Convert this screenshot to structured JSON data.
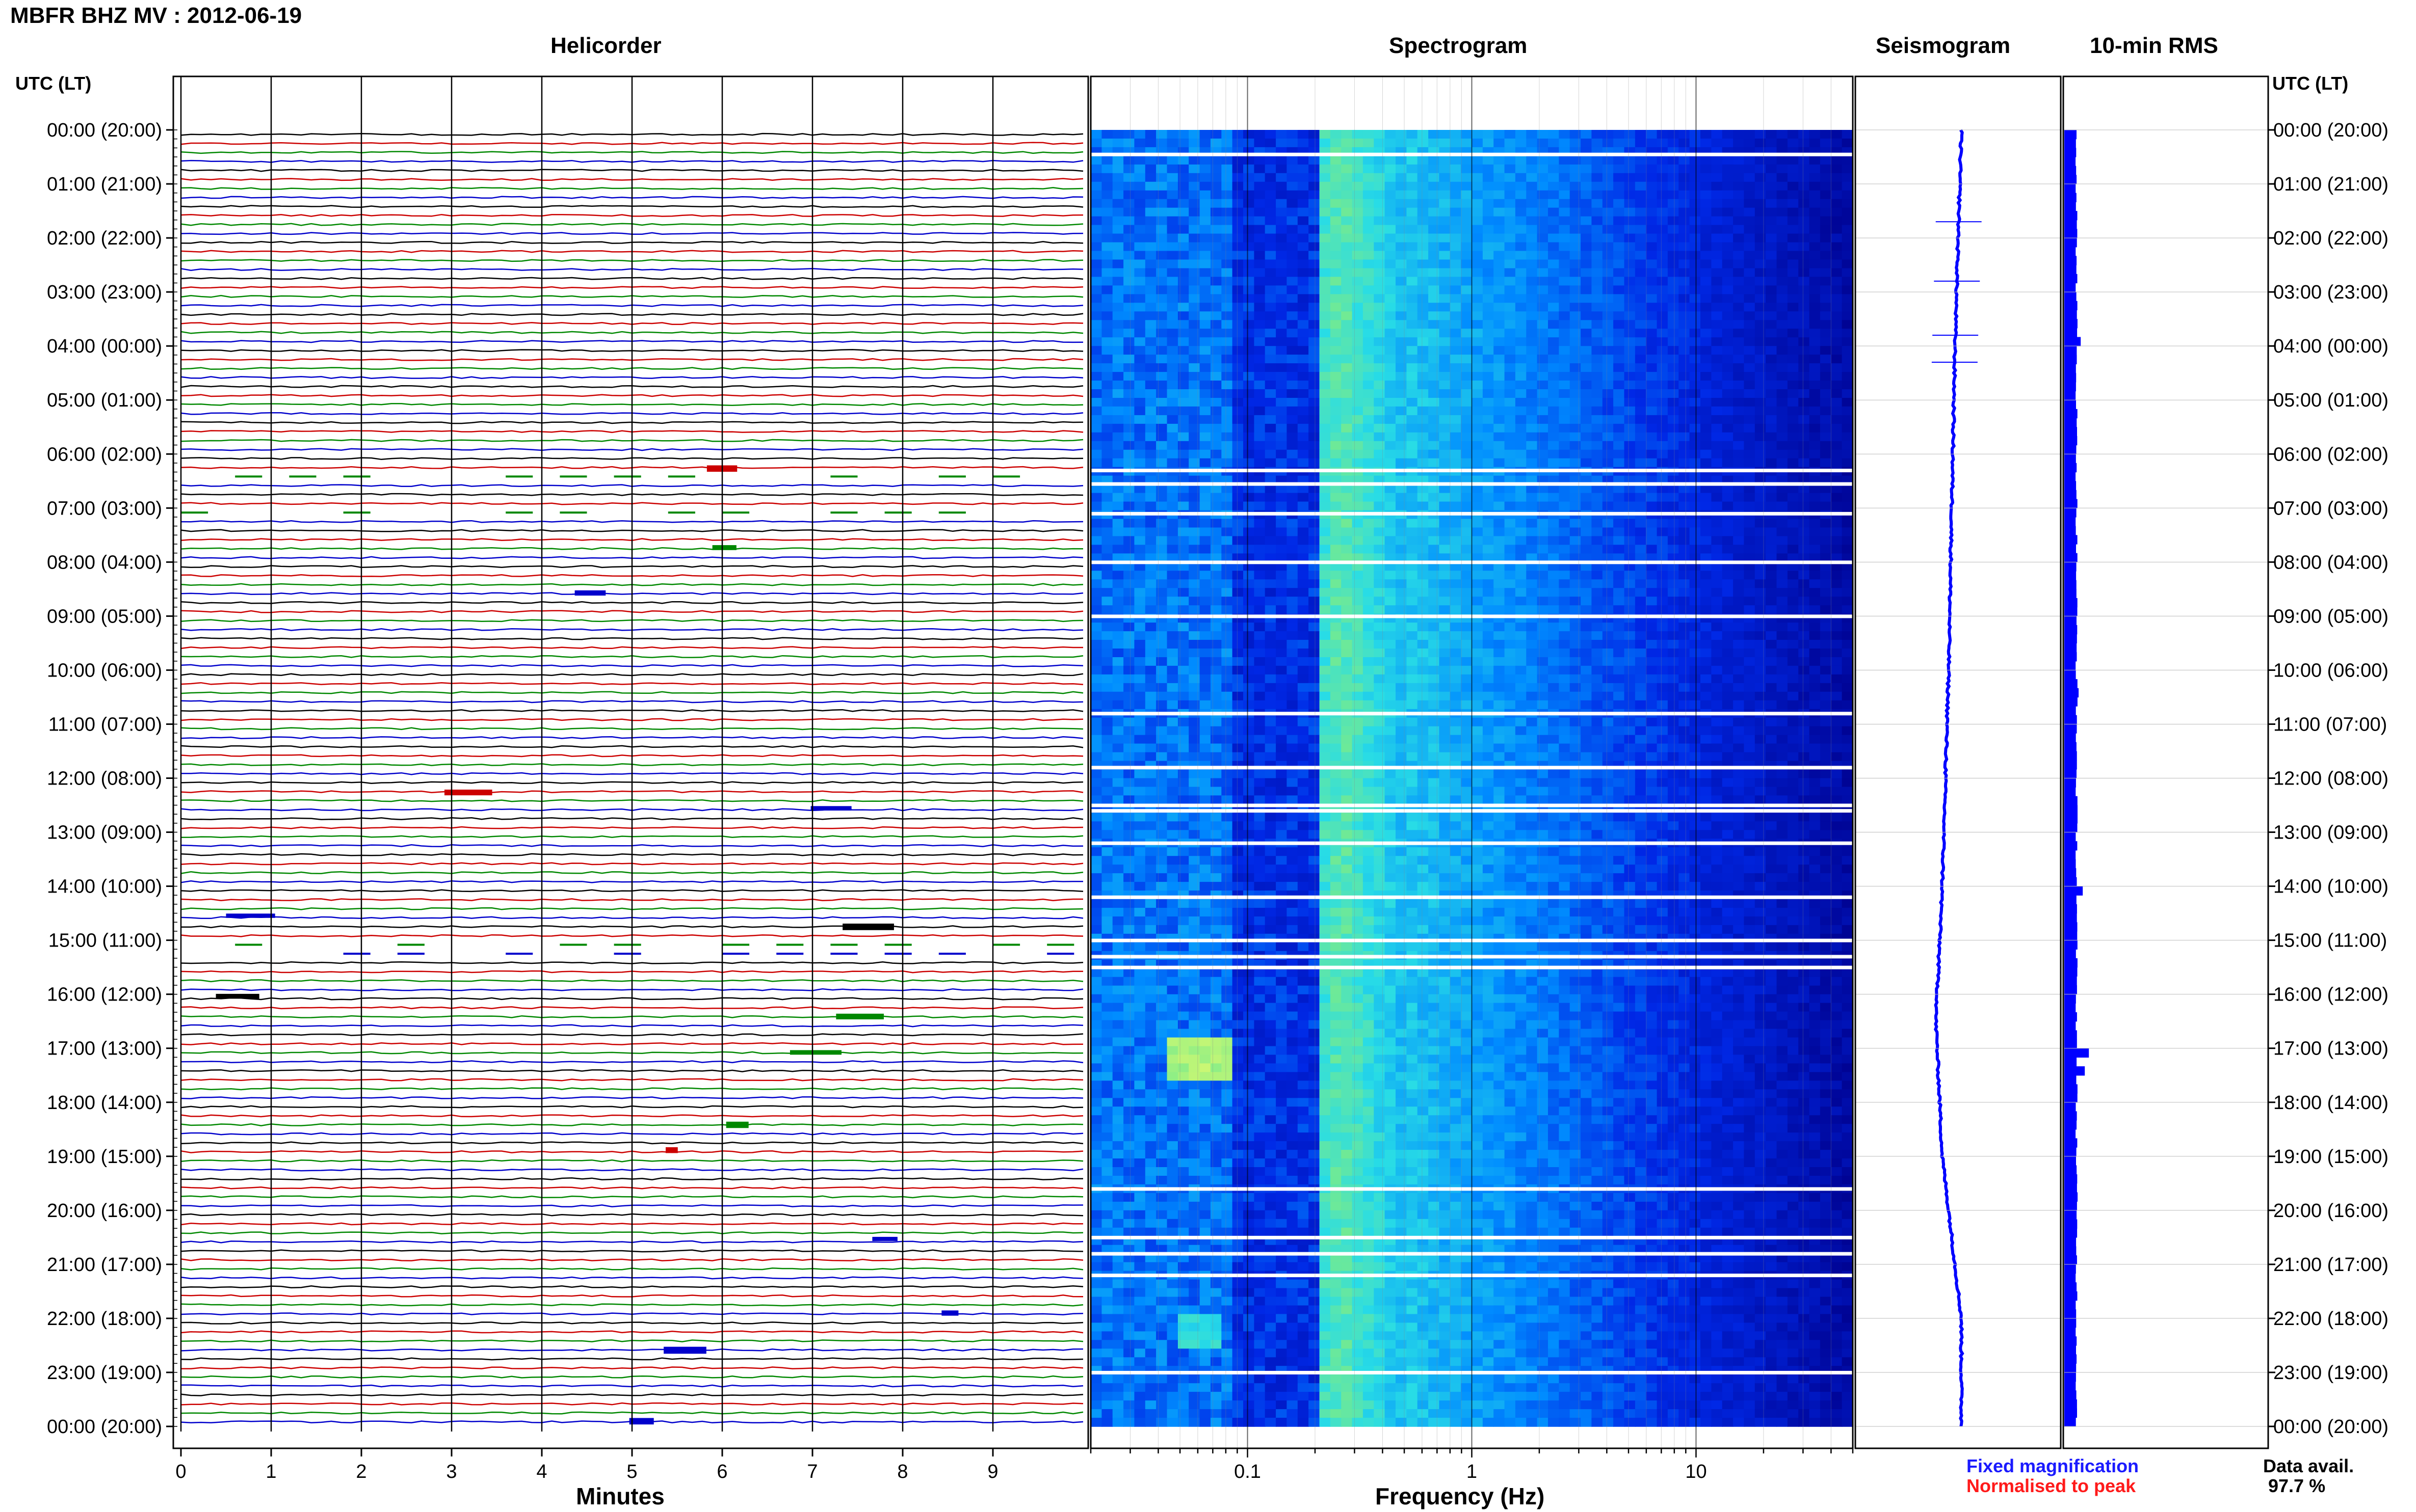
{
  "header": {
    "station_title": "MBFR BHZ MV : 2012-06-19",
    "panel_titles": {
      "helicorder": "Helicorder",
      "spectrogram": "Spectrogram",
      "seismogram": "Seismogram",
      "rms": "10-min RMS"
    },
    "time_axis_label_left": "UTC (LT)",
    "time_axis_label_right": "UTC (LT)"
  },
  "time_labels": [
    "00:00 (20:00)",
    "01:00 (21:00)",
    "02:00 (22:00)",
    "03:00 (23:00)",
    "04:00 (00:00)",
    "05:00 (01:00)",
    "06:00 (02:00)",
    "07:00 (03:00)",
    "08:00 (04:00)",
    "09:00 (05:00)",
    "10:00 (06:00)",
    "11:00 (07:00)",
    "12:00 (08:00)",
    "13:00 (09:00)",
    "14:00 (10:00)",
    "15:00 (11:00)",
    "16:00 (12:00)",
    "17:00 (13:00)",
    "18:00 (14:00)",
    "19:00 (15:00)",
    "20:00 (16:00)",
    "21:00 (17:00)",
    "22:00 (18:00)",
    "23:00 (19:00)",
    "00:00 (20:00)"
  ],
  "footer": {
    "helicorder_xlabel": "Minutes",
    "spectrogram_xlabel": "Frequency (Hz)",
    "legend_fixed": "Fixed magnification",
    "legend_normalised": "Normalised to peak",
    "data_avail_label": "Data avail.",
    "data_avail_value": "97.7 %"
  },
  "colors": {
    "trace_cycle": [
      "#000000",
      "#cc0000",
      "#008800",
      "#0000cc"
    ],
    "fixed_magnification": "#1a1aff",
    "normalised_to_peak": "#ff1a1a",
    "spectrogram_low": "#00008b",
    "spectrogram_high": "#ffff66",
    "seismogram": "#0000ff",
    "rms": "#0000ff"
  },
  "chart_data": [
    {
      "type": "line",
      "panel": "helicorder",
      "xlabel": "Minutes",
      "x_ticks": [
        "0",
        "1",
        "2",
        "3",
        "4",
        "5",
        "6",
        "7",
        "8",
        "9"
      ],
      "xlim": [
        0,
        10
      ],
      "rows_per_hour": 6,
      "trace_minutes_per_row": 10,
      "gaps_hours": [
        [
          6.2,
          6.4
        ],
        [
          7.0,
          7.1
        ],
        [
          14.9,
          15.2
        ]
      ]
    },
    {
      "type": "heatmap",
      "panel": "spectrogram",
      "xlabel": "Frequency (Hz)",
      "x_scale": "log",
      "xlim": [
        0.02,
        50
      ],
      "x_ticks": [
        "0.1",
        "1",
        "10"
      ],
      "ylim_hours": [
        0,
        24
      ],
      "peak_band_hz": [
        0.2,
        0.35
      ],
      "data_gaps_hours": [
        0.45,
        6.3,
        6.55,
        7.1,
        8.0,
        9.0,
        10.8,
        11.8,
        12.5,
        12.6,
        13.2,
        14.2,
        15.0,
        15.3,
        15.5,
        19.6,
        20.5,
        20.8,
        21.2,
        23.0
      ],
      "bright_patches": [
        {
          "hours": [
            16.8,
            17.5
          ],
          "freq_hz": [
            0.045,
            0.085
          ],
          "level": 0.85
        },
        {
          "hours": [
            21.8,
            22.4
          ],
          "freq_hz": [
            0.05,
            0.08
          ],
          "level": 0.65
        }
      ]
    },
    {
      "type": "line",
      "panel": "seismogram",
      "ylim_hours": [
        0,
        24
      ],
      "offset_points": [
        [
          0,
          0.0
        ],
        [
          4,
          -0.05
        ],
        [
          10,
          -0.1
        ],
        [
          14,
          -0.15
        ],
        [
          16.5,
          -0.2
        ],
        [
          19,
          -0.15
        ],
        [
          22,
          0.0
        ],
        [
          24,
          0.0
        ]
      ],
      "spikes_hours": [
        1.7,
        2.8,
        3.8,
        4.3
      ]
    },
    {
      "type": "bar",
      "panel": "rms",
      "interval_minutes": 10,
      "ylim_hours": [
        0,
        24
      ],
      "baseline": 0.3,
      "peaks": [
        {
          "hour": 3.8,
          "value": 0.4
        },
        {
          "hour": 10.3,
          "value": 0.35
        },
        {
          "hour": 14.0,
          "value": 0.45
        },
        {
          "hour": 17.0,
          "value": 0.6
        },
        {
          "hour": 17.3,
          "value": 0.5
        }
      ]
    }
  ]
}
